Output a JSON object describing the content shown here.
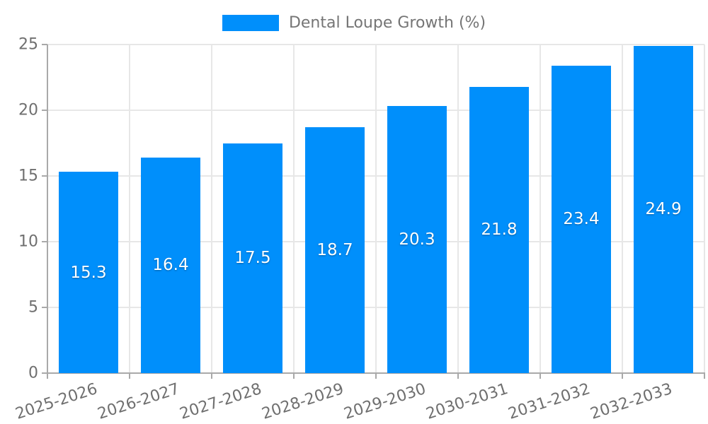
{
  "chart_data": {
    "type": "bar",
    "title": "",
    "legend_label": "Dental Loupe Growth (%)",
    "legend_position": "top-center",
    "categories": [
      "2025-2026",
      "2026-2027",
      "2027-2028",
      "2028-2029",
      "2029-2030",
      "2030-2031",
      "2031-2032",
      "2032-2033"
    ],
    "series": [
      {
        "name": "Dental Loupe Growth (%)",
        "values": [
          15.3,
          16.4,
          17.5,
          18.7,
          20.3,
          21.8,
          23.4,
          24.9
        ]
      }
    ],
    "data_labels": [
      "15.3",
      "16.4",
      "17.5",
      "18.7",
      "20.3",
      "21.8",
      "23.4",
      "24.9"
    ],
    "xlabel": "",
    "ylabel": "",
    "ylim": [
      0,
      25
    ],
    "yticks": [
      0,
      5,
      10,
      15,
      20,
      25
    ],
    "grid": "on",
    "x_tick_rotation_deg": -18,
    "colors": {
      "bar": "#008FFB",
      "grid": "#e7e7e7",
      "axis": "#a9a9a9",
      "tick_text": "#6f6f6f",
      "legend_text": "#757575",
      "data_label_text": "#ffffff",
      "background": "#ffffff"
    }
  }
}
